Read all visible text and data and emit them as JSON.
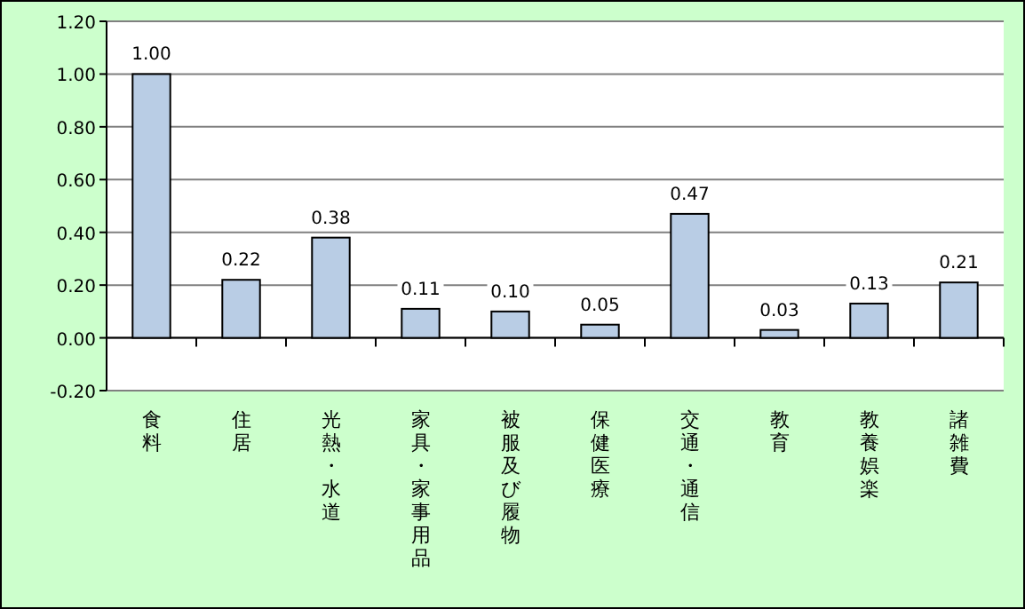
{
  "chart_data": {
    "type": "bar",
    "categories": [
      "食料",
      "住居",
      "光熱・水道",
      "家具・家事用品",
      "被服及び履物",
      "保健医療",
      "交通・通信",
      "教育",
      "教養娯楽",
      "諸雑費"
    ],
    "values": [
      1.0,
      0.22,
      0.38,
      0.11,
      0.1,
      0.05,
      0.47,
      0.03,
      0.13,
      0.21
    ],
    "value_labels": [
      "1.00",
      "0.22",
      "0.38",
      "0.11",
      "0.10",
      "0.05",
      "0.47",
      "0.03",
      "0.13",
      "0.21"
    ],
    "color": "#b9cde5",
    "ylim": [
      -0.2,
      1.2
    ],
    "yticks": [
      {
        "value": -0.2,
        "label": "-0.20"
      },
      {
        "value": 0,
        "label": "0.00"
      },
      {
        "value": 0.2,
        "label": "0.20"
      },
      {
        "value": 0.4,
        "label": "0.40"
      },
      {
        "value": 0.6,
        "label": "0.60"
      },
      {
        "value": 0.8,
        "label": "0.80"
      },
      {
        "value": 1.0,
        "label": "1.00"
      },
      {
        "value": 1.2,
        "label": "1.20"
      }
    ],
    "grid": "y"
  }
}
